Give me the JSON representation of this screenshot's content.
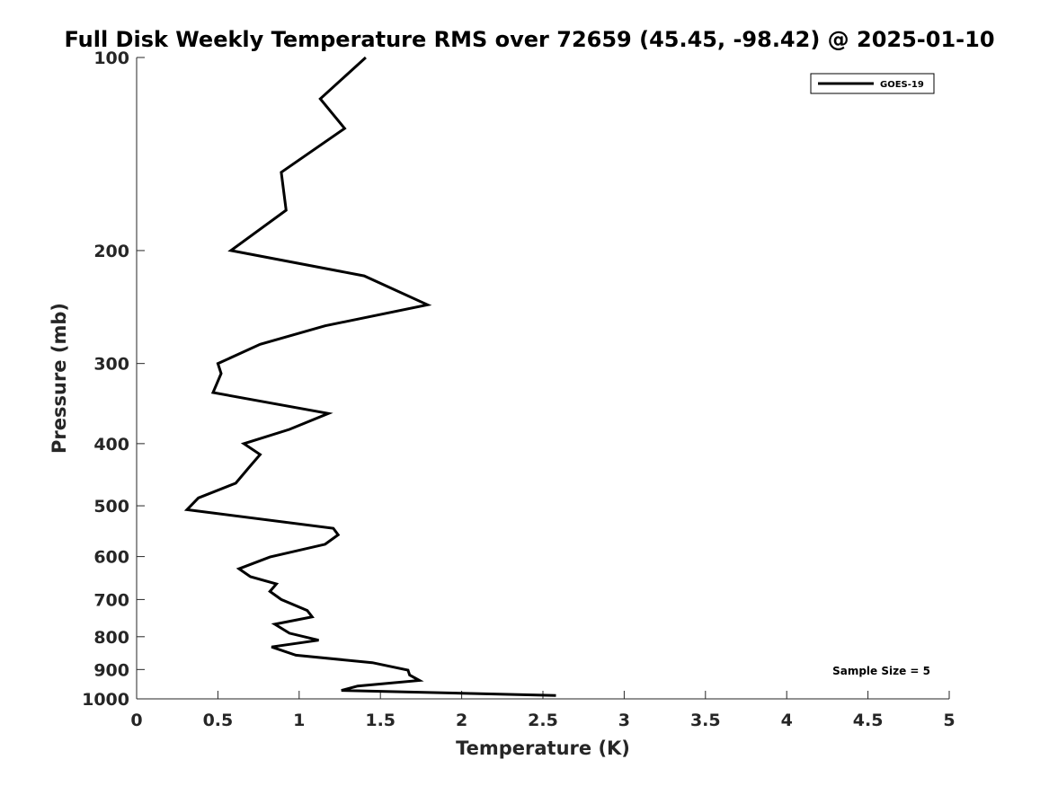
{
  "chart_data": {
    "type": "line",
    "title": "Full Disk Weekly Temperature RMS over 72659 (45.45, -98.42) @ 2025-01-10",
    "xlabel": "Temperature (K)",
    "ylabel": "Pressure (mb)",
    "xlim": [
      0,
      5
    ],
    "ylim": [
      1000,
      100
    ],
    "y_scale": "log",
    "y_reversed": true,
    "x_ticks": [
      0,
      0.5,
      1,
      1.5,
      2,
      2.5,
      3,
      3.5,
      4,
      4.5,
      5
    ],
    "x_tick_labels": [
      "0",
      "0.5",
      "1",
      "1.5",
      "2",
      "2.5",
      "3",
      "3.5",
      "4",
      "4.5",
      "5"
    ],
    "y_ticks": [
      100,
      200,
      300,
      400,
      500,
      600,
      700,
      800,
      900,
      1000
    ],
    "y_tick_labels": [
      "100",
      "200",
      "300",
      "400",
      "500",
      "600",
      "700",
      "800",
      "900",
      "1000"
    ],
    "grid": false,
    "legend_position": "top-right",
    "series": [
      {
        "name": "GOES-19",
        "color": "#000000",
        "x": [
          1.41,
          1.13,
          1.28,
          0.89,
          0.92,
          0.58,
          1.4,
          1.79,
          1.16,
          0.76,
          0.5,
          0.52,
          0.47,
          1.18,
          0.94,
          0.66,
          0.76,
          0.69,
          0.61,
          0.38,
          0.31,
          1.21,
          1.24,
          1.16,
          0.82,
          0.63,
          0.7,
          0.86,
          0.82,
          0.89,
          1.05,
          1.08,
          0.85,
          0.94,
          1.12,
          0.83,
          0.98,
          1.45,
          1.67,
          1.68,
          1.74,
          1.36,
          1.26,
          2.58
        ],
        "y": [
          100,
          116,
          129,
          151,
          173,
          200,
          219,
          243,
          262,
          280,
          300,
          311,
          333,
          359,
          380,
          400,
          416,
          436,
          461,
          486,
          507,
          542,
          555,
          574,
          601,
          627,
          645,
          662,
          680,
          700,
          728,
          745,
          765,
          790,
          810,
          830,
          855,
          878,
          902,
          918,
          936,
          955,
          970,
          988
        ]
      }
    ],
    "annotations": [
      "Sample Size = 5"
    ]
  }
}
